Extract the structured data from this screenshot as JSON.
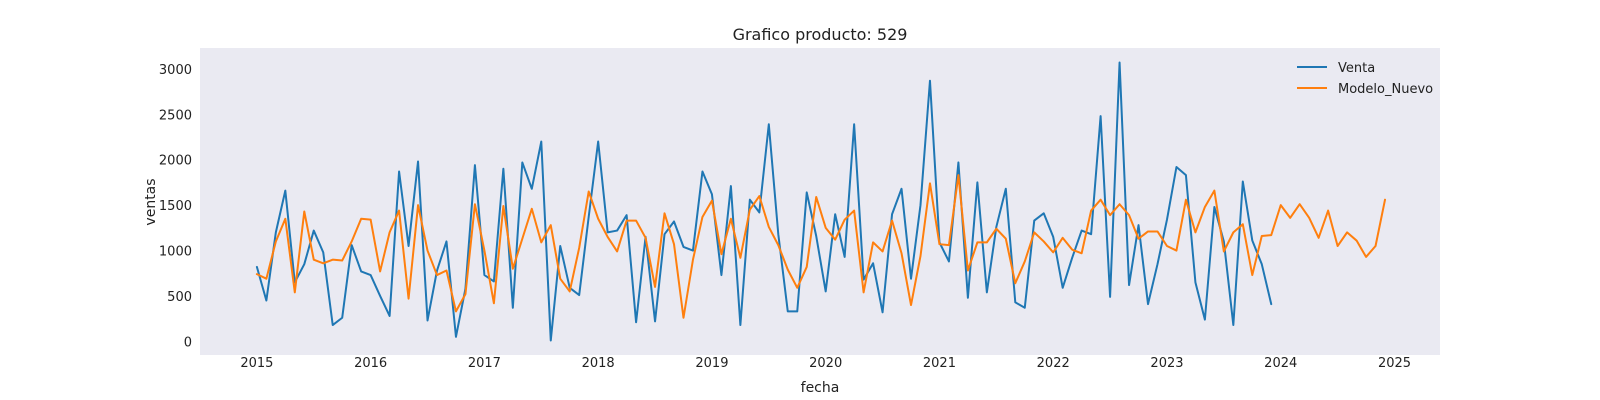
{
  "chart_data": {
    "type": "line",
    "title": "Grafico producto: 529",
    "xlabel": "fecha",
    "ylabel": "ventas",
    "xlim": [
      2014.5,
      2025.4
    ],
    "ylim": [
      -150,
      3230
    ],
    "xticks": [
      2015,
      2016,
      2017,
      2018,
      2019,
      2020,
      2021,
      2022,
      2023,
      2024,
      2025
    ],
    "yticks": [
      0,
      500,
      1000,
      1500,
      2000,
      2500,
      3000
    ],
    "grid": false,
    "legend": "top-right",
    "x_start": 2015,
    "x_step": 0.08333333,
    "series": [
      {
        "name": "Venta",
        "color": "#1f77b4",
        "values": [
          820,
          450,
          1200,
          1660,
          650,
          850,
          1220,
          980,
          180,
          260,
          1060,
          770,
          730,
          500,
          280,
          1870,
          1050,
          1980,
          230,
          780,
          1100,
          50,
          580,
          1940,
          730,
          660,
          1900,
          370,
          1970,
          1680,
          2200,
          10,
          1050,
          590,
          510,
          1370,
          2200,
          1200,
          1220,
          1390,
          210,
          1150,
          220,
          1180,
          1320,
          1040,
          1000,
          1870,
          1620,
          730,
          1710,
          180,
          1560,
          1420,
          2390,
          1180,
          330,
          330,
          1640,
          1160,
          550,
          1400,
          930,
          2390,
          680,
          860,
          320,
          1400,
          1680,
          690,
          1500,
          2870,
          1090,
          880,
          1970,
          480,
          1750,
          540,
          1260,
          1680,
          430,
          370,
          1330,
          1410,
          1150,
          590,
          920,
          1220,
          1180,
          2480,
          490,
          3070,
          620,
          1280,
          410,
          850,
          1340,
          1920,
          1830,
          650,
          240,
          1480,
          1100,
          180,
          1760,
          1110,
          850,
          410
        ]
      },
      {
        "name": "Modelo_Nuevo",
        "color": "#ff7f0e",
        "values": [
          740,
          690,
          1100,
          1350,
          540,
          1430,
          900,
          860,
          900,
          890,
          1100,
          1350,
          1340,
          770,
          1200,
          1440,
          470,
          1500,
          1000,
          730,
          780,
          330,
          520,
          1510,
          1000,
          420,
          1490,
          800,
          1130,
          1460,
          1090,
          1280,
          690,
          550,
          1030,
          1650,
          1350,
          1150,
          990,
          1330,
          1330,
          1140,
          600,
          1410,
          1070,
          260,
          900,
          1370,
          1550,
          960,
          1350,
          920,
          1450,
          1600,
          1260,
          1060,
          790,
          590,
          820,
          1590,
          1250,
          1120,
          1340,
          1440,
          540,
          1090,
          990,
          1330,
          970,
          400,
          940,
          1740,
          1070,
          1060,
          1830,
          780,
          1090,
          1090,
          1240,
          1130,
          640,
          880,
          1200,
          1100,
          980,
          1140,
          1010,
          970,
          1440,
          1560,
          1390,
          1510,
          1390,
          1130,
          1210,
          1210,
          1050,
          1000,
          1560,
          1200,
          1480,
          1660,
          990,
          1200,
          1290,
          730,
          1160,
          1170,
          1500,
          1360,
          1510,
          1360,
          1140,
          1440,
          1050,
          1200,
          1110,
          930,
          1050,
          1560
        ]
      }
    ]
  }
}
